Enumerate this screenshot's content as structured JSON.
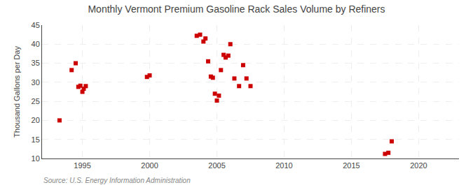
{
  "chart_data": {
    "type": "scatter",
    "title": "Monthly Vermont Premium Gasoline Rack Sales Volume by Refiners",
    "ylabel": "Thousand Gallons per Day",
    "annotations": [
      "Source: U.S. Energy Information Administration"
    ],
    "color": "#CC0000",
    "marker": "square",
    "grid": true,
    "xlim": [
      1992,
      2023
    ],
    "ylim": [
      10,
      45
    ],
    "xticks": [
      1995,
      2000,
      2005,
      2010,
      2015,
      2020
    ],
    "yticks": [
      10,
      15,
      20,
      25,
      30,
      35,
      40,
      45
    ],
    "x": [
      1993.3,
      1994.2,
      1994.5,
      1994.7,
      1994.85,
      1995.0,
      1995.1,
      1995.25,
      1999.8,
      2000.0,
      2003.5,
      2003.75,
      2004.0,
      2004.15,
      2004.35,
      2004.55,
      2004.7,
      2004.85,
      2005.0,
      2005.15,
      2005.3,
      2005.5,
      2005.65,
      2005.85,
      2006.0,
      2006.3,
      2006.65,
      2006.95,
      2007.2,
      2007.5,
      2017.5,
      2017.75,
      2018.0
    ],
    "values": [
      20.0,
      33.2,
      35.0,
      28.8,
      29.1,
      27.5,
      28.3,
      29.0,
      31.4,
      31.8,
      42.2,
      42.5,
      40.7,
      41.5,
      35.5,
      31.5,
      31.2,
      27.0,
      25.2,
      26.5,
      33.2,
      37.2,
      36.5,
      37.0,
      40.0,
      31.0,
      29.0,
      34.5,
      31.0,
      29.0,
      11.2,
      11.5,
      14.5
    ]
  }
}
